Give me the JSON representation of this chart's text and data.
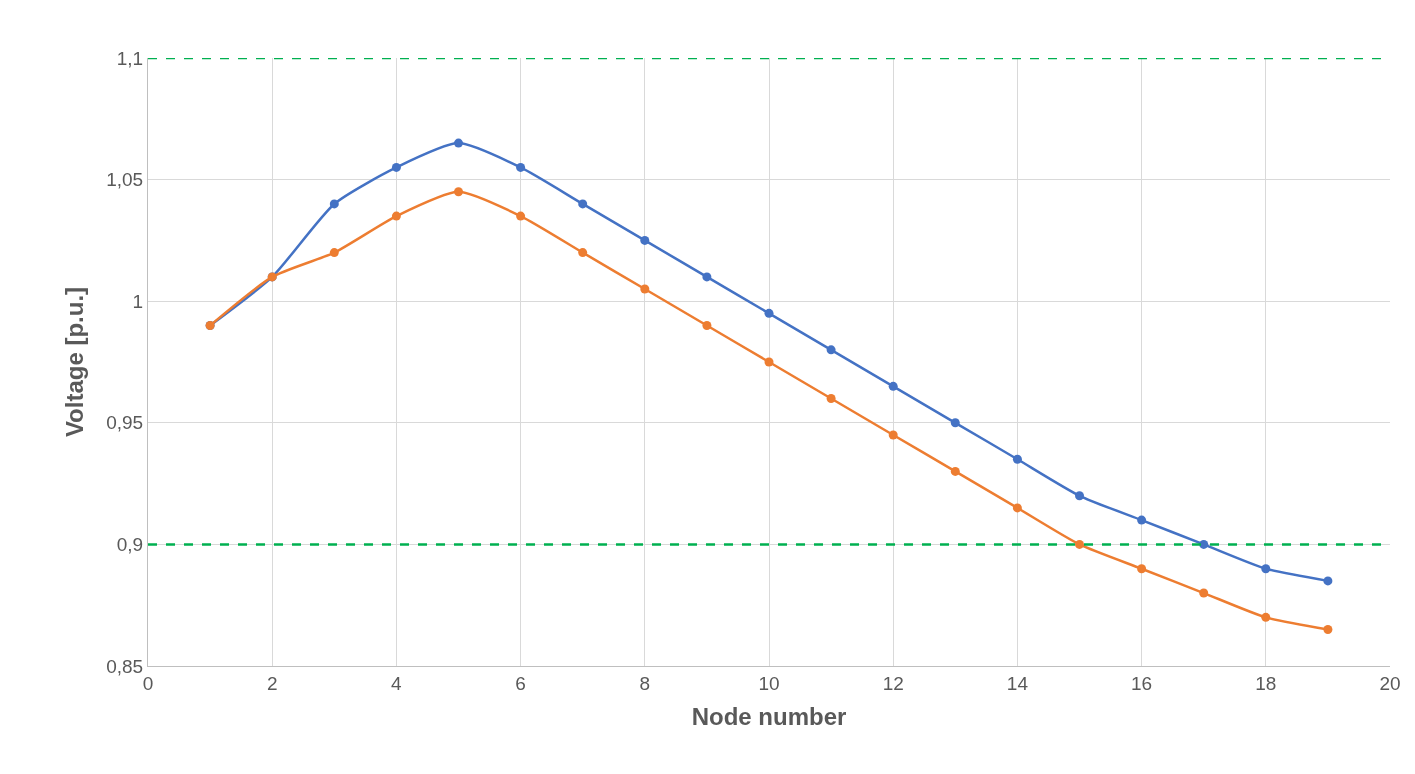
{
  "chart_data": {
    "type": "line",
    "xlabel": "Node number",
    "ylabel": "Voltage [p.u.]",
    "x": [
      1,
      2,
      3,
      4,
      5,
      6,
      7,
      8,
      9,
      10,
      11,
      12,
      13,
      14,
      15,
      16,
      17,
      18,
      19
    ],
    "series": [
      {
        "color": "#4472c4",
        "values": [
          0.99,
          1.01,
          1.04,
          1.055,
          1.065,
          1.055,
          1.04,
          1.025,
          1.01,
          0.995,
          0.98,
          0.965,
          0.95,
          0.935,
          0.92,
          0.91,
          0.9,
          0.89,
          0.885
        ]
      },
      {
        "color": "#ed7d31",
        "values": [
          0.99,
          1.01,
          1.02,
          1.035,
          1.045,
          1.035,
          1.02,
          1.005,
          0.99,
          0.975,
          0.96,
          0.945,
          0.93,
          0.915,
          0.9,
          0.89,
          0.88,
          0.87,
          0.865
        ]
      }
    ],
    "xlim": [
      0,
      20
    ],
    "xticks": [
      0,
      2,
      4,
      6,
      8,
      10,
      12,
      14,
      16,
      18,
      20
    ],
    "ylim": [
      0.85,
      1.1
    ],
    "yticks": [
      {
        "value": 0.85,
        "label": "0,85"
      },
      {
        "value": 0.9,
        "label": "0,9"
      },
      {
        "value": 0.95,
        "label": "0,95"
      },
      {
        "value": 1,
        "label": "1"
      },
      {
        "value": 1.05,
        "label": "1,05"
      },
      {
        "value": 1.1,
        "label": "1,1"
      }
    ],
    "ref_lines": [
      {
        "axis": "y",
        "value": 1.1,
        "color": "#00b050",
        "line_style": "dashed"
      },
      {
        "axis": "y",
        "value": 0.9,
        "color": "#00b050",
        "line_style": "dashed"
      }
    ],
    "grid": true,
    "marker": "circle",
    "line_style": "solid"
  }
}
